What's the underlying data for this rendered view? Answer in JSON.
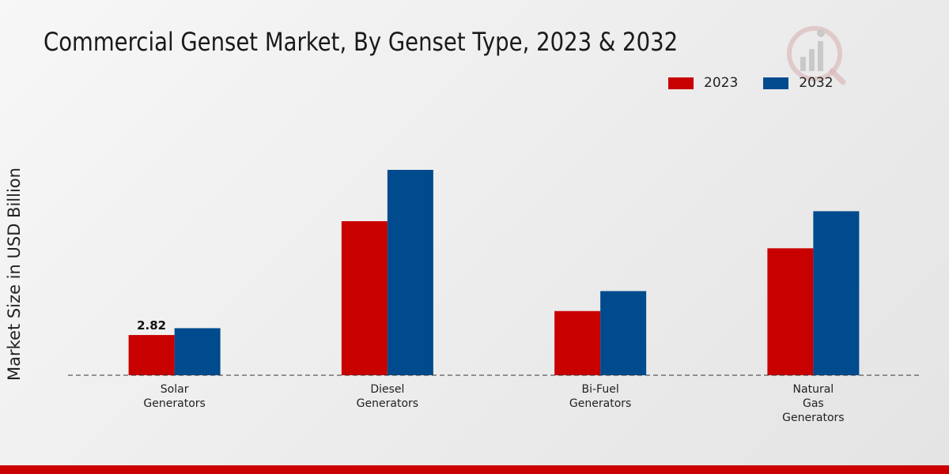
{
  "title": "Commercial Genset Market, By Genset Type, 2023 & 2032",
  "colors": {
    "2023": "#c80000",
    "2032": "#004b8d",
    "accent_bar": "#cc0000"
  },
  "watermark_icon": "bar-chart-logo-icon",
  "chart_data": {
    "type": "bar",
    "title": "Commercial Genset Market, By Genset Type, 2023 & 2032",
    "xlabel": "",
    "ylabel": "Market Size in USD Billion",
    "categories": [
      "Solar\nGenerators",
      "Diesel\nGenerators",
      "Bi-Fuel\nGenerators",
      "Natural\nGas\nGenerators"
    ],
    "series": [
      {
        "name": "2023",
        "values": [
          2.82,
          10.8,
          4.5,
          8.9
        ]
      },
      {
        "name": "2032",
        "values": [
          3.3,
          14.4,
          5.9,
          11.5
        ]
      }
    ],
    "data_labels": [
      {
        "series": 0,
        "index": 0,
        "text": "2.82"
      }
    ],
    "ylim": [
      0,
      18
    ],
    "grid": false,
    "legend_position": "top-right",
    "baseline": "dashed"
  }
}
